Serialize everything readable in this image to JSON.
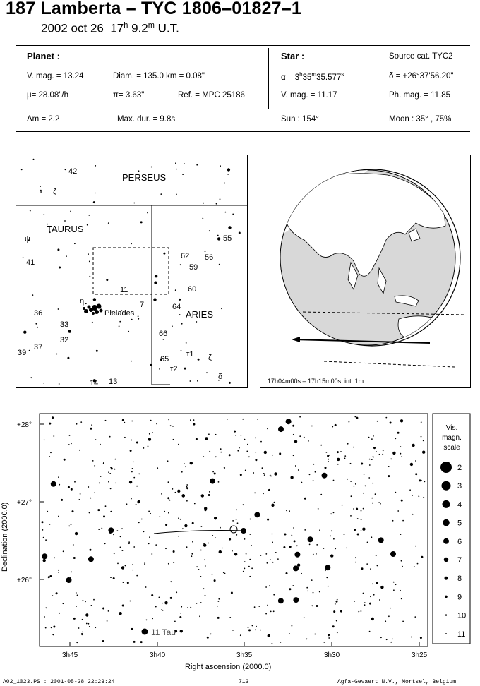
{
  "header": {
    "title": "187 Lamberta  –  TYC 1806–01827–1",
    "date": "2002 oct 26",
    "hour": "17",
    "hour_unit": "h",
    "minute": "9.2",
    "minute_unit": "m",
    "timescale": "U.T."
  },
  "planet": {
    "heading": "Planet :",
    "vmag": "V. mag. = 13.24",
    "diam": "Diam. = 135.0 km = 0.08\"",
    "mu": "μ= 28.08\"/h",
    "pi": "π= 3.63\"",
    "ref": "Ref. = MPC 25186"
  },
  "star": {
    "heading": "Star :",
    "source": "Source cat.  TYC2",
    "alpha_prefix": "α = 3",
    "alpha_h": "h",
    "alpha_min": "35",
    "alpha_m": "m",
    "alpha_sec": "35.577",
    "alpha_s": "s",
    "delta": "δ = +26°37'56.20\"",
    "vmag": "V. mag. = 11.17",
    "phmag": "Ph. mag. = 11.85"
  },
  "summary": {
    "dm": "Δm = 2.2",
    "maxdur": "Max. dur. = 9.8s",
    "sun": "Sun : 154°",
    "moon": "Moon :  35° , 75%"
  },
  "finder": {
    "constellations": [
      "PERSEUS",
      "TAURUS",
      "ARIES"
    ],
    "labels": [
      "42",
      "ζ",
      "ψ",
      "41",
      "36",
      "33",
      "32",
      "37",
      "39",
      "η",
      "7",
      "11",
      "Pleiades",
      "62",
      "56",
      "59",
      "55",
      "60",
      "64",
      "66",
      "65",
      "τ1",
      "τ2",
      "ζ",
      "δ",
      "14",
      "13"
    ]
  },
  "globe": {
    "caption": "17h04m00s – 17h15m00s; int.  1m"
  },
  "detail": {
    "dec_ticks": [
      "+28°",
      "+27°",
      "+26°"
    ],
    "ra_ticks": [
      "3h45",
      "3h40",
      "3h35",
      "3h30",
      "3h25"
    ],
    "xlabel": "Right ascension (2000.0)",
    "ylabel": "Declination (2000.0)",
    "star_label": "11 Tau"
  },
  "scale": {
    "title_lines": [
      "Vis.",
      "magn.",
      "scale"
    ],
    "mags": [
      "2",
      "3",
      "4",
      "5",
      "6",
      "7",
      "8",
      "9",
      "10",
      "11"
    ]
  },
  "footer": {
    "left": "A02_1023.PS : 2001-05-28 22:23:24",
    "center": "713",
    "right": "Agfa-Gevaert N.V., Mortsel, Belgium"
  }
}
